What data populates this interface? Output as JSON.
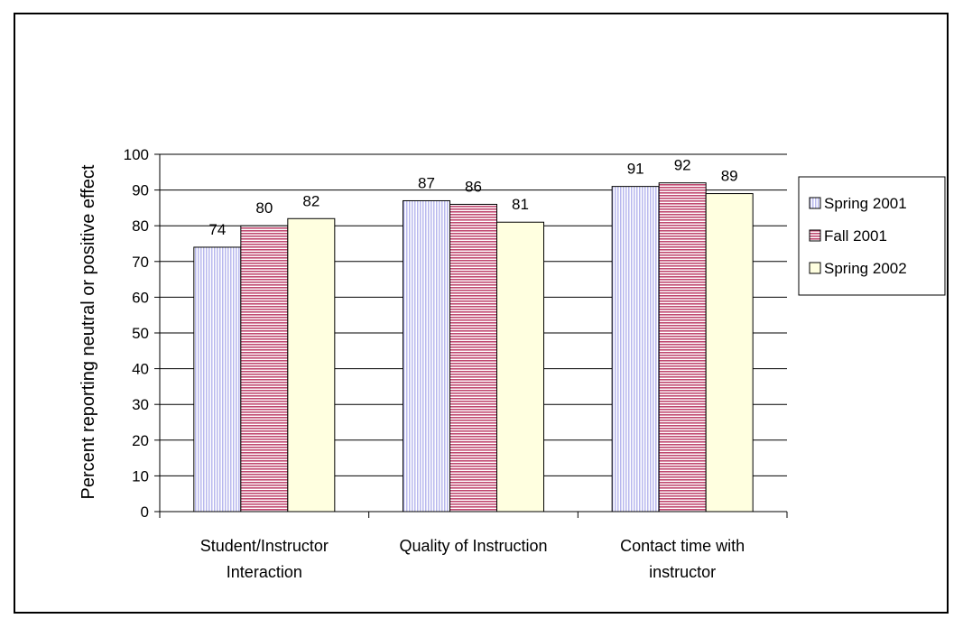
{
  "chart_data": {
    "type": "bar",
    "ylabel": "Percent reporting neutral or positive effect",
    "ylim": [
      0,
      100
    ],
    "yticks": [
      0,
      10,
      20,
      30,
      40,
      50,
      60,
      70,
      80,
      90,
      100
    ],
    "grid": true,
    "legend": "right",
    "categories": [
      [
        "Student/Instructor",
        "Interaction"
      ],
      [
        "Quality of Instruction"
      ],
      [
        "Contact time with",
        "instructor"
      ]
    ],
    "series": [
      {
        "name": "Spring 2001",
        "values": [
          74,
          87,
          91
        ],
        "color": "#c8c8f0",
        "pattern": "vertical-lines"
      },
      {
        "name": "Fall 2001",
        "values": [
          80,
          86,
          92
        ],
        "color": "#c06080",
        "pattern": "horizontal-lines"
      },
      {
        "name": "Spring 2002",
        "values": [
          82,
          81,
          89
        ],
        "color": "#ffffe0",
        "pattern": "solid"
      }
    ]
  }
}
